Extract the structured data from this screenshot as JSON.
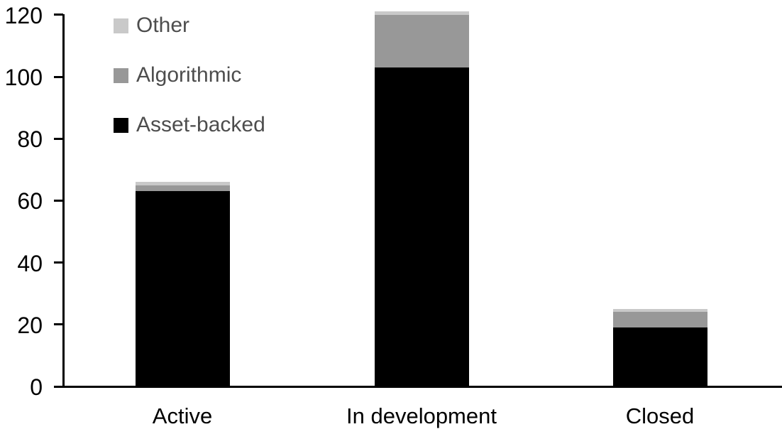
{
  "chart_data": {
    "type": "bar",
    "stacked": true,
    "title": "",
    "xlabel": "",
    "ylabel": "",
    "categories": [
      "Active",
      "In development",
      "Closed"
    ],
    "series": [
      {
        "name": "Asset-backed",
        "color": "#000000",
        "values": [
          63,
          103,
          19
        ]
      },
      {
        "name": "Algorithmic",
        "color": "#989898",
        "values": [
          2,
          17,
          5
        ]
      },
      {
        "name": "Other",
        "color": "#c9c9c9",
        "values": [
          1,
          1,
          1
        ]
      }
    ],
    "stack_totals": [
      66,
      121,
      25
    ],
    "ylim": [
      0,
      120
    ],
    "yticks": [
      0,
      20,
      40,
      60,
      80,
      100,
      120
    ],
    "grid": false,
    "legend_position": "top-left",
    "legend_order_top_to_bottom": [
      "Other",
      "Algorithmic",
      "Asset-backed"
    ],
    "legend_text_color": "#4d4d4d",
    "axis_color": "#000000",
    "background_color": "#ffffff"
  }
}
